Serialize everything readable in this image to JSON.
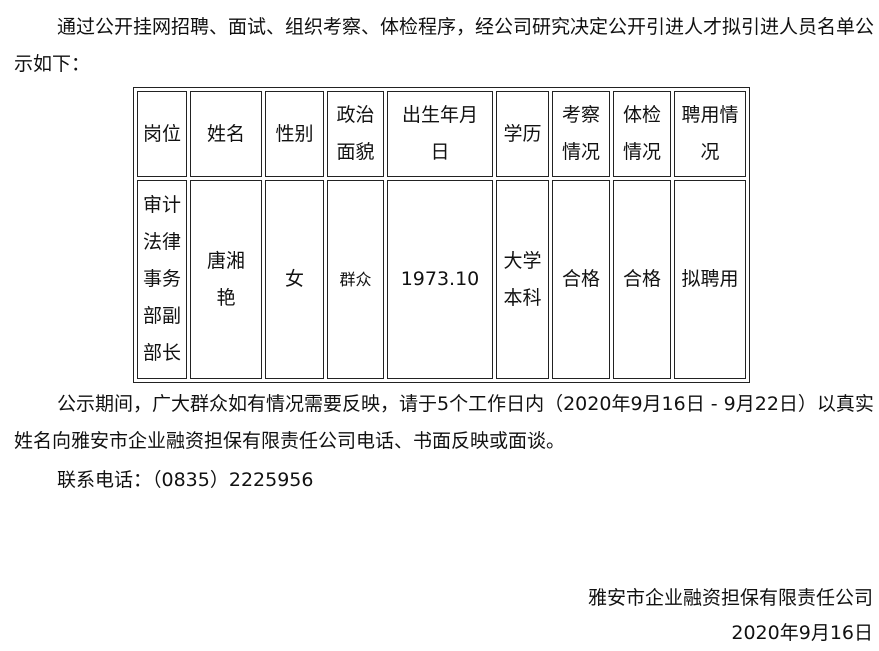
{
  "intro": "通过公开挂网招聘、面试、组织考察、体检程序，经公司研究决定公开引进人才拟引进人员名单公示如下：",
  "table": {
    "headers": [
      "岗位",
      "姓名",
      "性别",
      "政治面貌",
      "出生年月日",
      "学历",
      "考察情况",
      "体检情况",
      "聘用情况"
    ],
    "rows": [
      [
        "审计法律事务部副部长",
        "唐湘艳",
        "女",
        "群众",
        "1973.10",
        "大学本科",
        "合格",
        "合格",
        "拟聘用"
      ]
    ]
  },
  "notice": "公示期间，广大群众如有情况需要反映，请于5个工作日内（2020年9月16日 - 9月22日）以真实姓名向雅安市企业融资担保有限责任公司电话、书面反映或面谈。",
  "contact": "联系电话：（0835）2225956",
  "signature": {
    "company": "雅安市企业融资担保有限责任公司",
    "date": "2020年9月16日"
  }
}
